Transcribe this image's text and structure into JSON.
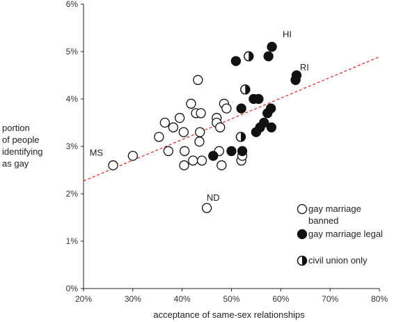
{
  "chart_data": {
    "type": "scatter",
    "title": "",
    "xlabel": "acceptance of same-sex relationships",
    "ylabel": [
      "portion",
      "of people",
      "identifying",
      "as gay"
    ],
    "xlim": [
      20,
      80
    ],
    "ylim": [
      0,
      6
    ],
    "x_ticks": [
      "20%",
      "30%",
      "40%",
      "50%",
      "60%",
      "70%",
      "80%"
    ],
    "y_ticks": [
      "0%",
      "1%",
      "2%",
      "3%",
      "4%",
      "5%",
      "6%"
    ],
    "grid": false,
    "legend_position": "bottom-right",
    "trendline": {
      "x": [
        20,
        80
      ],
      "y": [
        2.27,
        4.89
      ],
      "color": "#e03030",
      "style": "dashed"
    },
    "colors": {
      "marker_stroke": "#111111",
      "marker_fill_open": "#ffffff",
      "marker_fill_solid": "#111111"
    },
    "series": [
      {
        "name": "gay marriage banned",
        "marker": "open",
        "points": [
          [
            26,
            2.6
          ],
          [
            30,
            2.8
          ],
          [
            35.3,
            3.2
          ],
          [
            36.5,
            3.5
          ],
          [
            37.2,
            2.9
          ],
          [
            38.2,
            3.4
          ],
          [
            39.5,
            3.6
          ],
          [
            40.3,
            3.3
          ],
          [
            40.5,
            2.9
          ],
          [
            40.4,
            2.6
          ],
          [
            41.8,
            3.9
          ],
          [
            42.2,
            2.7
          ],
          [
            42.8,
            3.7
          ],
          [
            43.2,
            4.4
          ],
          [
            43.5,
            3.1
          ],
          [
            43.6,
            3.3
          ],
          [
            43.8,
            3.7
          ],
          [
            44,
            2.7
          ],
          [
            45,
            1.7
          ],
          [
            47,
            3.6
          ],
          [
            47,
            3.5
          ],
          [
            47.5,
            2.9
          ],
          [
            47.7,
            3.4
          ],
          [
            48,
            2.6
          ],
          [
            48.5,
            3.9
          ],
          [
            49,
            3.8
          ],
          [
            52,
            2.7
          ],
          [
            52.2,
            2.8
          ]
        ]
      },
      {
        "name": "gay marriage legal",
        "marker": "filled",
        "points": [
          [
            50.9,
            4.8
          ],
          [
            58.2,
            5.1
          ],
          [
            57.5,
            4.9
          ],
          [
            63.2,
            4.5
          ],
          [
            63,
            4.4
          ],
          [
            52,
            3.8
          ],
          [
            54.5,
            4.0
          ],
          [
            55.5,
            4.0
          ],
          [
            58,
            3.8
          ],
          [
            57.3,
            3.7
          ],
          [
            56.6,
            3.5
          ],
          [
            55.8,
            3.4
          ],
          [
            58.1,
            3.4
          ],
          [
            55,
            3.3
          ],
          [
            52.2,
            2.9
          ],
          [
            50,
            2.9
          ],
          [
            46.3,
            2.8
          ]
        ]
      },
      {
        "name": "civil union only",
        "marker": "half",
        "points": [
          [
            53.5,
            4.9
          ],
          [
            52.8,
            4.2
          ],
          [
            51.9,
            3.2
          ]
        ]
      }
    ],
    "annotations": [
      {
        "text": "HI",
        "x": 61.3,
        "y": 5.3
      },
      {
        "text": "RI",
        "x": 64.8,
        "y": 4.6
      },
      {
        "text": "MS",
        "x": 22.6,
        "y": 2.8
      },
      {
        "text": "ND",
        "x": 46.3,
        "y": 1.85
      }
    ],
    "legend": [
      {
        "label": [
          "gay marriage",
          "banned"
        ],
        "marker": "open"
      },
      {
        "label": [
          "gay marriage legal"
        ],
        "marker": "filled"
      },
      {
        "label": [
          "civil union only"
        ],
        "marker": "half"
      }
    ]
  }
}
